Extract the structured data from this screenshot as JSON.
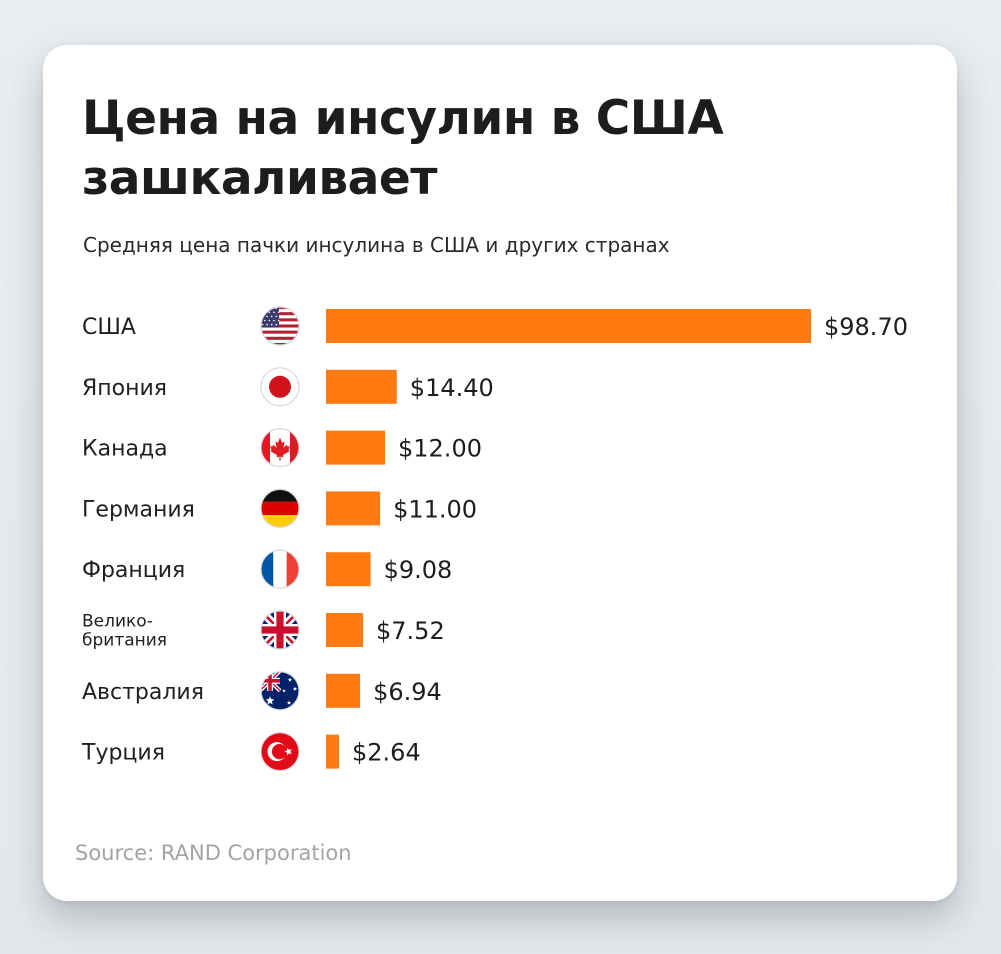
{
  "title": "Цена на инсулин в США зашкаливает",
  "subtitle": "Средняя цена пачки инсулина в США и других странах",
  "source": "Source: RAND Corporation",
  "colors": {
    "bar": "#ff7a11",
    "text": "#1d1d1f",
    "source_text": "#a3a3a6"
  },
  "chart_data": {
    "type": "bar",
    "orientation": "horizontal",
    "categories": [
      "США",
      "Япония",
      "Канада",
      "Германия",
      "Франция",
      "Велико-британия",
      "Австралия",
      "Турция"
    ],
    "category_lines": [
      [
        "США"
      ],
      [
        "Япония"
      ],
      [
        "Канада"
      ],
      [
        "Германия"
      ],
      [
        "Франция"
      ],
      [
        "Велико-",
        "британия"
      ],
      [
        "Австралия"
      ],
      [
        "Турция"
      ]
    ],
    "flags": [
      "us-flag-icon",
      "japan-flag-icon",
      "canada-flag-icon",
      "germany-flag-icon",
      "france-flag-icon",
      "uk-flag-icon",
      "australia-flag-icon",
      "turkey-flag-icon"
    ],
    "values": [
      98.7,
      14.4,
      12.0,
      11.0,
      9.08,
      7.52,
      6.94,
      2.64
    ],
    "value_labels": [
      "$98.70",
      "$14.40",
      "$12.00",
      "$11.00",
      "$9.08",
      "$7.52",
      "$6.94",
      "$2.64"
    ],
    "grid": false,
    "legend": "none"
  }
}
